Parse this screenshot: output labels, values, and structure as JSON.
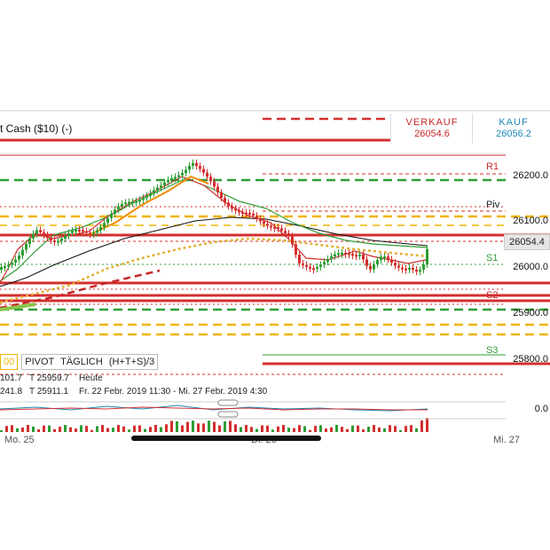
{
  "header": {
    "title": "t Cash ($10) (-)",
    "sell_label": "VERKAUF",
    "sell_price": "26054.6",
    "buy_label": "KAUF",
    "buy_price": "26056.2"
  },
  "price_axis": {
    "labels": [
      "26200.0",
      "26100.0",
      "26054.4",
      "26000.0",
      "25900.0",
      "25800.0"
    ],
    "current_price": "26054.4",
    "indicator_zero": "0.0"
  },
  "pivot_levels": {
    "r1": "R1",
    "piv": "Piv",
    "s1": "S1",
    "s2": "S2",
    "s3": "S3"
  },
  "indicator": {
    "left_value": "00",
    "name": "PIVOT",
    "period": "TÄGLICH",
    "formula": "(H+T+S)/3"
  },
  "info_rows": [
    {
      "left": "101.7",
      "t": "T 25959.7",
      "desc": "Heute"
    },
    {
      "left": "241.8",
      "t": "T 25911.1",
      "desc": "Fr. 22 Febr. 2019 11:30 - Mi. 27 Febr. 2019 4:30"
    }
  ],
  "time_axis": {
    "labels": [
      "Mo. 25",
      "Di. 26",
      "Mi. 27"
    ]
  },
  "colors": {
    "sell": "#c62828",
    "buy": "#1e88b4",
    "up": "#2e9e34",
    "down": "#d32f2f",
    "pivot_yellow": "#f0b400"
  }
}
